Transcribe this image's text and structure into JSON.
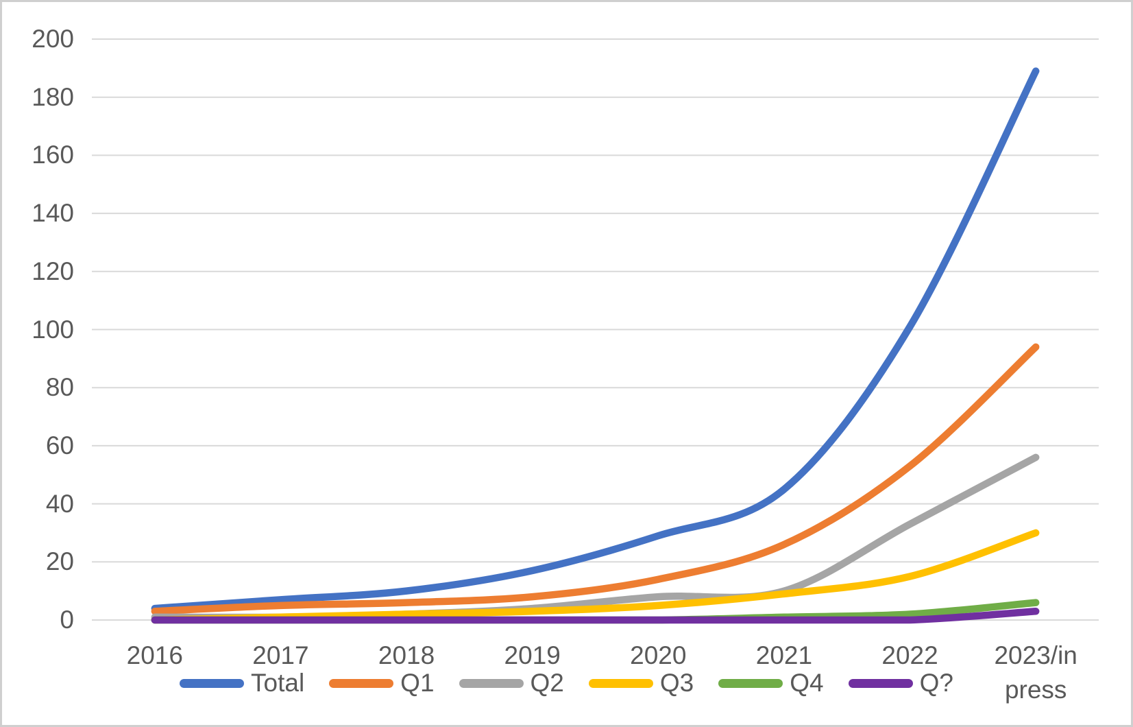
{
  "chart_data": {
    "type": "line",
    "title": "",
    "xlabel": "",
    "ylabel": "",
    "categories": [
      "2016",
      "2017",
      "2018",
      "2019",
      "2020",
      "2021",
      "2022",
      "2023/in press"
    ],
    "series": [
      {
        "name": "Total",
        "color": "#4472C4",
        "values": [
          4,
          7,
          10,
          17,
          29,
          45,
          101,
          189
        ]
      },
      {
        "name": "Q1",
        "color": "#ED7D31",
        "values": [
          3,
          5,
          6,
          8,
          14,
          26,
          53,
          94
        ]
      },
      {
        "name": "Q2",
        "color": "#A5A5A5",
        "values": [
          1,
          1,
          2,
          4,
          8,
          10,
          33,
          56
        ]
      },
      {
        "name": "Q3",
        "color": "#FFC000",
        "values": [
          0,
          1,
          2,
          3,
          5,
          9,
          15,
          30
        ]
      },
      {
        "name": "Q4",
        "color": "#70AD47",
        "values": [
          0,
          0,
          0,
          0,
          0,
          1,
          2,
          6
        ]
      },
      {
        "name": "Q?",
        "color": "#7030A0",
        "values": [
          0,
          0,
          0,
          0,
          0,
          0,
          0,
          3
        ]
      }
    ],
    "y_axis": {
      "min": 0,
      "max": 200,
      "step": 20,
      "tick_labels": [
        "0",
        "20",
        "40",
        "60",
        "80",
        "100",
        "120",
        "140",
        "160",
        "180",
        "200"
      ]
    },
    "legend": {
      "position": "bottom",
      "entries": [
        "Total",
        "Q1",
        "Q2",
        "Q3",
        "Q4",
        "Q?"
      ]
    },
    "grid": true,
    "line_style": "smoothed",
    "colors": {
      "gridline": "#D9D9D9",
      "axis_text": "#595959",
      "background": "#FFFFFF",
      "border": "#CFCFCF"
    }
  }
}
